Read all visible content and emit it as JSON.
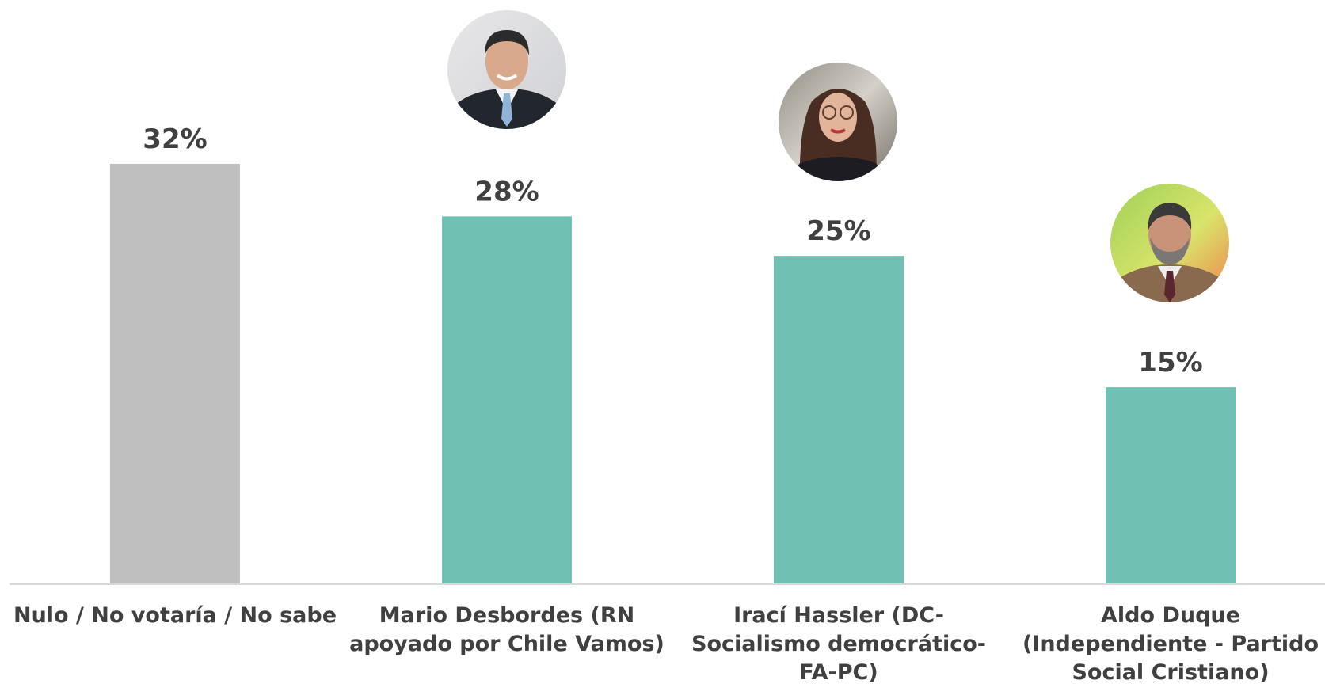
{
  "chart_data": {
    "type": "bar",
    "categories": [
      [
        "Nulo / No votaría / No sabe"
      ],
      [
        "Mario Desbordes (RN",
        "apoyado por Chile Vamos)"
      ],
      [
        "Irací Hassler (DC-",
        "Socialismo democrático-",
        "FA-PC)"
      ],
      [
        "Aldo Duque",
        "(Independiente - Partido",
        "Social Cristiano)"
      ]
    ],
    "values": [
      32,
      28,
      25,
      15
    ],
    "value_labels": [
      "32%",
      "28%",
      "25%",
      "15%"
    ],
    "bar_colors": [
      "#bfbfbf",
      "#70c1b3",
      "#70c1b3",
      "#70c1b3"
    ],
    "photos": [
      null,
      "candidate-photo",
      "candidate-photo",
      "candidate-photo"
    ],
    "ylim": [
      0,
      32
    ],
    "grid": false,
    "legend": "none"
  }
}
